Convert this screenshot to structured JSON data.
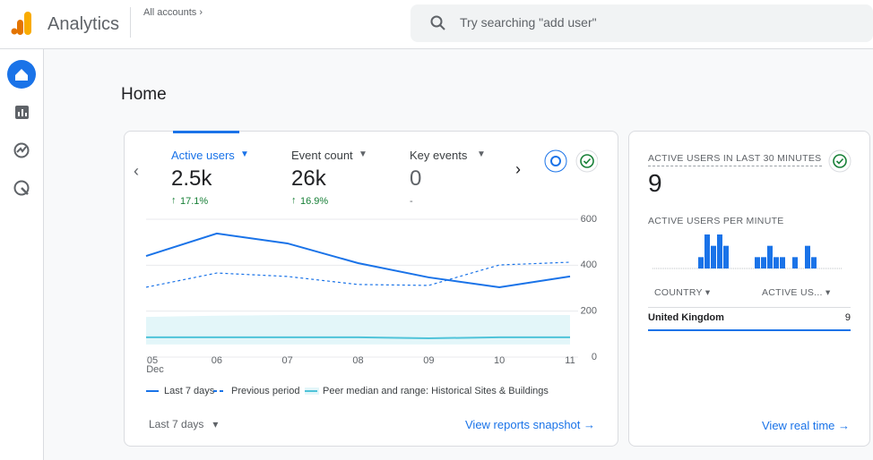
{
  "header": {
    "app_name": "Analytics",
    "account": "All accounts",
    "search_placeholder": "Try searching \"add user\""
  },
  "page_title": "Home",
  "tabs": [
    {
      "label": "Active users",
      "value": "2.5k",
      "change": "17.1%"
    },
    {
      "label": "Event count",
      "value": "26k",
      "change": "16.9%"
    },
    {
      "label": "Key events",
      "value": "0",
      "change": "-"
    }
  ],
  "chart_data": [
    {
      "type": "line",
      "x": [
        "05",
        "06",
        "07",
        "08",
        "09",
        "10",
        "11"
      ],
      "x_sublabel": "Dec",
      "ylim": [
        0,
        600
      ],
      "yticks": [
        0,
        200,
        400,
        600
      ],
      "grid": true,
      "series": [
        {
          "name": "Last 7 days",
          "color": "#1a73e8",
          "style": "solid",
          "values": [
            440,
            538,
            495,
            409,
            347,
            304,
            351
          ]
        },
        {
          "name": "Previous period",
          "color": "#1a73e8",
          "style": "dashed",
          "values": [
            304,
            366,
            351,
            316,
            312,
            401,
            413
          ]
        },
        {
          "name": "Peer median and range: Historical Sites & Buildings",
          "color": "#4fc3d9",
          "style": "solid",
          "band_color": "#e3f6f9",
          "values": [
            86,
            86,
            86,
            86,
            82,
            86,
            86
          ],
          "low": [
            55,
            55,
            55,
            55,
            55,
            55,
            55
          ],
          "high": [
            175,
            180,
            183,
            183,
            183,
            183,
            183
          ]
        }
      ]
    },
    {
      "type": "bar",
      "title": "ACTIVE USERS PER MINUTE",
      "color": "#1a73e8",
      "ylim": [
        0,
        3
      ],
      "values": [
        0,
        0,
        0,
        0,
        0,
        0,
        0,
        1,
        3,
        2,
        3,
        2,
        0,
        0,
        0,
        0,
        1,
        1,
        2,
        1,
        1,
        0,
        1,
        0,
        2,
        1,
        0,
        0,
        0,
        0
      ]
    }
  ],
  "range_selector": "Last 7 days",
  "snapshot_link": "View reports snapshot",
  "realtime": {
    "title": "ACTIVE USERS IN LAST 30 MINUTES",
    "value": "9",
    "table": {
      "headers": [
        "COUNTRY",
        "ACTIVE US..."
      ],
      "rows": [
        [
          "United Kingdom",
          "9"
        ]
      ]
    },
    "link": "View real time"
  }
}
